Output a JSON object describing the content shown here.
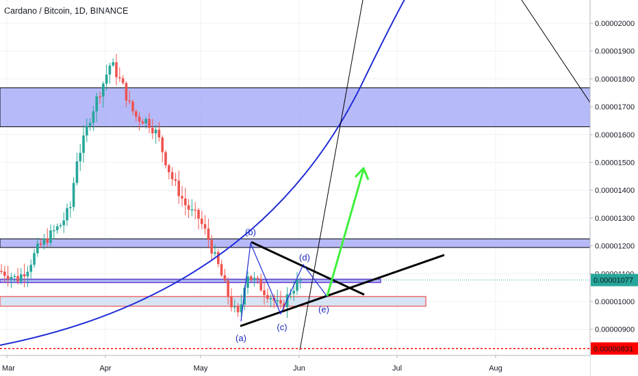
{
  "title": "Cardano / Bitcoin, 1D, BINANCE",
  "colors": {
    "up": "#26a69a",
    "down": "#ef5350",
    "zone_fill": "#9fa3f7",
    "zone_stroke": "#000000",
    "lower_zone_fill": "#cfdff2",
    "lower_zone_stroke": "#f06d6d",
    "curve": "#1e2bd6",
    "green_arrow": "#3ef03a",
    "wave": "#1e2bd6",
    "current_price_bg": "#26a69a",
    "low_price_bg": "#ff0000"
  },
  "chart_data": {
    "type": "candlestick",
    "x_axis": {
      "labels": [
        "Mar",
        "Apr",
        "May",
        "Jun",
        "Jul",
        "Aug"
      ],
      "grid": true
    },
    "y_axis": {
      "ticks": [
        "0.00002000",
        "0.00001900",
        "0.00001800",
        "0.00001700",
        "0.00001600",
        "0.00001500",
        "0.00001400",
        "0.00001300",
        "0.00001200",
        "0.00001100",
        "0.00001000",
        "0.00000900"
      ],
      "tick_values": [
        2000,
        1900,
        1800,
        1700,
        1600,
        1500,
        1400,
        1300,
        1200,
        1100,
        1000,
        900
      ],
      "unit": "x1e-8 BTC",
      "ylim": [
        805,
        2130
      ],
      "grid": true
    },
    "series_close_approx": [
      {
        "date": "Mar 1",
        "value": 1110
      },
      {
        "date": "Mar 10",
        "value": 1085
      },
      {
        "date": "Mar 15",
        "value": 1160
      },
      {
        "date": "Mar 20",
        "value": 1230
      },
      {
        "date": "Mar 25",
        "value": 1340
      },
      {
        "date": "Mar 28",
        "value": 1560
      },
      {
        "date": "Apr 1",
        "value": 1760
      },
      {
        "date": "Apr 5",
        "value": 1880
      },
      {
        "date": "Apr 10",
        "value": 1700
      },
      {
        "date": "Apr 15",
        "value": 1660
      },
      {
        "date": "Apr 20",
        "value": 1540
      },
      {
        "date": "Apr 25",
        "value": 1420
      },
      {
        "date": "May 1",
        "value": 1300
      },
      {
        "date": "May 5",
        "value": 1170
      },
      {
        "date": "May 10",
        "value": 1020
      },
      {
        "date": "May 13",
        "value": 935
      },
      {
        "date": "May 15",
        "value": 1200
      },
      {
        "date": "May 20",
        "value": 1060
      },
      {
        "date": "May 25",
        "value": 965
      },
      {
        "date": "May 30",
        "value": 1070
      },
      {
        "date": "Jun 1",
        "value": 1077
      }
    ],
    "price_labels": {
      "current": "0.00001077",
      "current_value": 1077,
      "low": "0.00000831",
      "low_value": 831
    },
    "zones": [
      {
        "from": 1628,
        "to": 1768,
        "style": "blue"
      },
      {
        "from": 1194,
        "to": 1225,
        "style": "blue"
      },
      {
        "from": 1068,
        "to": 1080,
        "style": "blue"
      },
      {
        "from": 983,
        "to": 1018,
        "style": "red"
      }
    ],
    "wave_labels": [
      "(a)",
      "(b)",
      "(c)",
      "(d)",
      "(e)"
    ]
  }
}
